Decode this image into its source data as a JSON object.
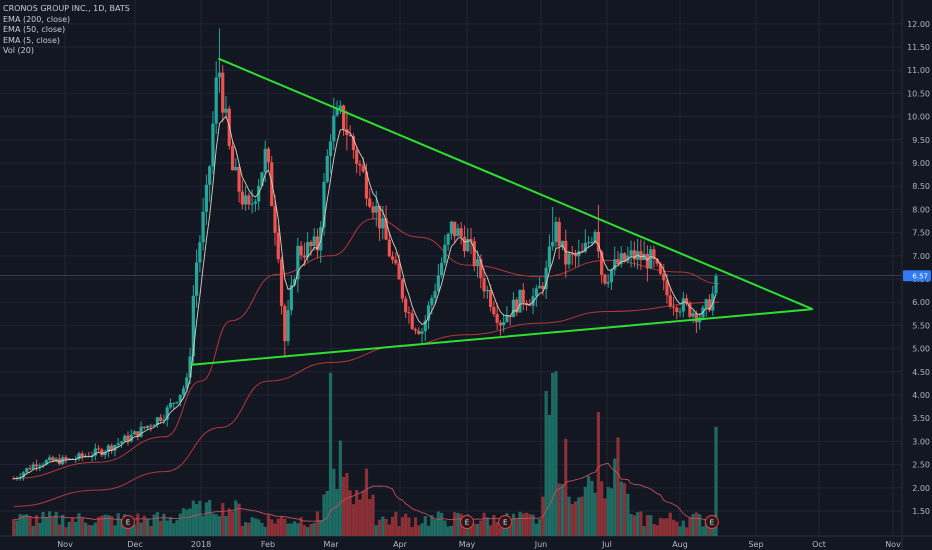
{
  "legend": {
    "title": "CRONOS GROUP INC., 1D, BATS",
    "studies": [
      "EMA (200, close)",
      "EMA (50, close)",
      "EMA (5, close)",
      "Vol (20)"
    ]
  },
  "colors": {
    "background": "#131722",
    "grid": "#1f2433",
    "up": "#26a69a",
    "down": "#ef5350",
    "trendline": "#2ee02e",
    "ema_slow": "#b3363a",
    "ema_fast": "#d9d0c0",
    "vol_ma": "#c05058",
    "price_tag": "#3179f5",
    "earnings_marker": "#e84040"
  },
  "chart_data": {
    "type": "candlestick",
    "symbol": "CRONOS GROUP INC.",
    "interval": "1D",
    "exchange": "BATS",
    "x_ticks": [
      "Nov",
      "Dec",
      "2018",
      "Feb",
      "Mar",
      "Apr",
      "May",
      "Jun",
      "Jul",
      "Aug",
      "Sep",
      "Oct",
      "Nov"
    ],
    "y_ticks": [
      "1.50",
      "2.00",
      "2.50",
      "3.00",
      "3.50",
      "4.00",
      "4.50",
      "5.00",
      "5.50",
      "6.00",
      "6.50",
      "7.00",
      "7.50",
      "8.00",
      "8.50",
      "9.00",
      "9.50",
      "10.00",
      "10.50",
      "11.00",
      "11.50",
      "12.00"
    ],
    "ylim": [
      1.2,
      12.3
    ],
    "last_price": "6.57",
    "close_path": [
      {
        "x": "2017-10-10",
        "y": 2.2
      },
      {
        "x": "2017-10-20",
        "y": 2.55
      },
      {
        "x": "2017-11-03",
        "y": 2.6
      },
      {
        "x": "2017-11-17",
        "y": 2.8
      },
      {
        "x": "2017-12-01",
        "y": 3.15
      },
      {
        "x": "2017-12-15",
        "y": 3.6
      },
      {
        "x": "2017-12-26",
        "y": 4.3
      },
      {
        "x": "2017-12-29",
        "y": 6.6
      },
      {
        "x": "2018-01-04",
        "y": 8.4
      },
      {
        "x": "2018-01-09",
        "y": 11.2
      },
      {
        "x": "2018-01-15",
        "y": 8.9
      },
      {
        "x": "2018-01-23",
        "y": 7.9
      },
      {
        "x": "2018-01-31",
        "y": 9.2
      },
      {
        "x": "2018-02-06",
        "y": 7.0
      },
      {
        "x": "2018-02-08",
        "y": 5.0
      },
      {
        "x": "2018-02-14",
        "y": 7.1
      },
      {
        "x": "2018-02-23",
        "y": 7.2
      },
      {
        "x": "2018-03-01",
        "y": 9.8
      },
      {
        "x": "2018-03-06",
        "y": 10.0
      },
      {
        "x": "2018-03-14",
        "y": 8.9
      },
      {
        "x": "2018-03-22",
        "y": 7.9
      },
      {
        "x": "2018-03-29",
        "y": 6.8
      },
      {
        "x": "2018-04-06",
        "y": 5.6
      },
      {
        "x": "2018-04-11",
        "y": 5.4
      },
      {
        "x": "2018-04-17",
        "y": 6.4
      },
      {
        "x": "2018-04-24",
        "y": 7.6
      },
      {
        "x": "2018-05-01",
        "y": 7.3
      },
      {
        "x": "2018-05-08",
        "y": 6.4
      },
      {
        "x": "2018-05-15",
        "y": 5.6
      },
      {
        "x": "2018-05-24",
        "y": 6.1
      },
      {
        "x": "2018-05-30",
        "y": 6.1
      },
      {
        "x": "2018-06-04",
        "y": 6.7
      },
      {
        "x": "2018-06-07",
        "y": 7.7
      },
      {
        "x": "2018-06-12",
        "y": 6.9
      },
      {
        "x": "2018-06-20",
        "y": 7.0
      },
      {
        "x": "2018-06-26",
        "y": 7.7
      },
      {
        "x": "2018-06-29",
        "y": 6.5
      },
      {
        "x": "2018-07-05",
        "y": 6.8
      },
      {
        "x": "2018-07-12",
        "y": 7.0
      },
      {
        "x": "2018-07-20",
        "y": 6.9
      },
      {
        "x": "2018-07-27",
        "y": 6.1
      },
      {
        "x": "2018-08-03",
        "y": 5.9
      },
      {
        "x": "2018-08-10",
        "y": 5.7
      },
      {
        "x": "2018-08-14",
        "y": 6.1
      },
      {
        "x": "2018-08-17",
        "y": 6.57
      }
    ],
    "ema_5": "close, 5-period EMA",
    "ema_50_path": [
      {
        "x": "2017-10-10",
        "y": 2.2
      },
      {
        "x": "2017-11-15",
        "y": 2.55
      },
      {
        "x": "2017-12-15",
        "y": 3.1
      },
      {
        "x": "2018-01-01",
        "y": 4.3
      },
      {
        "x": "2018-01-15",
        "y": 5.6
      },
      {
        "x": "2018-02-05",
        "y": 6.6
      },
      {
        "x": "2018-03-01",
        "y": 7.0
      },
      {
        "x": "2018-03-20",
        "y": 7.8
      },
      {
        "x": "2018-04-10",
        "y": 7.4
      },
      {
        "x": "2018-05-01",
        "y": 6.8
      },
      {
        "x": "2018-06-01",
        "y": 6.55
      },
      {
        "x": "2018-07-01",
        "y": 6.9
      },
      {
        "x": "2018-08-01",
        "y": 6.65
      },
      {
        "x": "2018-08-17",
        "y": 6.4
      }
    ],
    "ema_200_path": [
      {
        "x": "2017-10-10",
        "y": 1.6
      },
      {
        "x": "2017-11-15",
        "y": 1.95
      },
      {
        "x": "2017-12-15",
        "y": 2.35
      },
      {
        "x": "2018-01-10",
        "y": 3.3
      },
      {
        "x": "2018-02-01",
        "y": 4.3
      },
      {
        "x": "2018-03-01",
        "y": 4.7
      },
      {
        "x": "2018-04-01",
        "y": 5.05
      },
      {
        "x": "2018-05-01",
        "y": 5.3
      },
      {
        "x": "2018-06-01",
        "y": 5.55
      },
      {
        "x": "2018-07-01",
        "y": 5.8
      },
      {
        "x": "2018-08-17",
        "y": 6.0
      }
    ],
    "trendlines": [
      {
        "name": "upper",
        "from": {
          "x": "2018-01-09",
          "y": 11.25
        },
        "to": {
          "x": "2018-09-28",
          "y": 5.85
        }
      },
      {
        "name": "lower",
        "from": {
          "x": "2017-12-27",
          "y": 4.65
        },
        "to": {
          "x": "2018-09-28",
          "y": 5.85
        }
      }
    ],
    "volume": {
      "scale": "relative",
      "spikes": [
        {
          "x": "2018-03-01",
          "v": 0.95
        },
        {
          "x": "2018-03-05",
          "v": 0.55
        },
        {
          "x": "2018-06-04",
          "v": 0.75
        },
        {
          "x": "2018-06-07",
          "v": 0.95
        },
        {
          "x": "2018-06-12",
          "v": 0.55
        },
        {
          "x": "2018-06-27",
          "v": 0.7
        },
        {
          "x": "2018-07-05",
          "v": 0.45
        },
        {
          "x": "2018-08-16",
          "v": 0.78
        }
      ]
    },
    "earnings_markers": [
      {
        "x": "2017-11-28",
        "label": "E"
      },
      {
        "x": "2018-05-01",
        "label": "E"
      },
      {
        "x": "2018-05-17",
        "label": "E"
      },
      {
        "x": "2018-08-14",
        "label": "E"
      }
    ]
  }
}
